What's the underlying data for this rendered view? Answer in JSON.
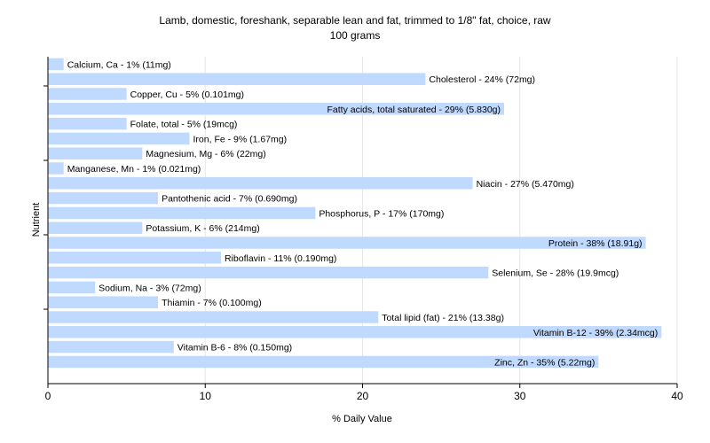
{
  "chart_data": {
    "type": "bar",
    "orientation": "horizontal",
    "title": "Lamb, domestic, foreshank, separable lean and fat, trimmed to 1/8\" fat, choice, raw",
    "subtitle": "100 grams",
    "xlabel": "% Daily Value",
    "ylabel": "Nutrient",
    "xlim": [
      0,
      40
    ],
    "xticks": [
      0,
      10,
      20,
      30,
      40
    ],
    "grid": true,
    "bar_color": "#c0d9ff",
    "categories": [
      "Calcium, Ca",
      "Cholesterol",
      "Copper, Cu",
      "Fatty acids, total saturated",
      "Folate, total",
      "Iron, Fe",
      "Magnesium, Mg",
      "Manganese, Mn",
      "Niacin",
      "Pantothenic acid",
      "Phosphorus, P",
      "Potassium, K",
      "Protein",
      "Riboflavin",
      "Selenium, Se",
      "Sodium, Na",
      "Thiamin",
      "Total lipid (fat)",
      "Vitamin B-12",
      "Vitamin B-6",
      "Zinc, Zn"
    ],
    "values": [
      1,
      24,
      5,
      29,
      5,
      9,
      6,
      1,
      27,
      7,
      17,
      6,
      38,
      11,
      28,
      3,
      7,
      21,
      39,
      8,
      35
    ],
    "labels": [
      "Calcium, Ca - 1% (11mg)",
      "Cholesterol - 24% (72mg)",
      "Copper, Cu - 5% (0.101mg)",
      "Fatty acids, total saturated - 29% (5.830g)",
      "Folate, total - 5% (19mcg)",
      "Iron, Fe - 9% (1.67mg)",
      "Magnesium, Mg - 6% (22mg)",
      "Manganese, Mn - 1% (0.021mg)",
      "Niacin - 27% (5.470mg)",
      "Pantothenic acid - 7% (0.690mg)",
      "Phosphorus, P - 17% (170mg)",
      "Potassium, K - 6% (214mg)",
      "Protein - 38% (18.91g)",
      "Riboflavin - 11% (0.190mg)",
      "Selenium, Se - 28% (19.9mcg)",
      "Sodium, Na - 3% (72mg)",
      "Thiamin - 7% (0.100mg)",
      "Total lipid (fat) - 21% (13.38g)",
      "Vitamin B-12 - 39% (2.34mcg)",
      "Vitamin B-6 - 8% (0.150mg)",
      "Zinc, Zn - 35% (5.22mg)"
    ]
  }
}
